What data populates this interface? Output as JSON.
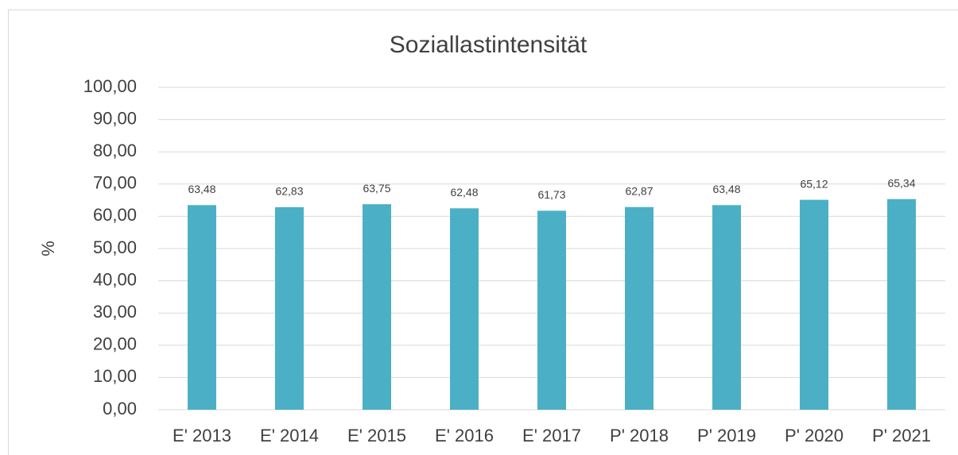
{
  "chart_data": {
    "type": "bar",
    "title": "Soziallastintensität",
    "y_label": "%",
    "categories": [
      "E' 2013",
      "E' 2014",
      "E' 2015",
      "E' 2016",
      "E' 2017",
      "P' 2018",
      "P' 2019",
      "P' 2020",
      "P' 2021"
    ],
    "values": [
      63.48,
      62.83,
      63.75,
      62.48,
      61.73,
      62.87,
      63.48,
      65.12,
      65.34
    ],
    "value_labels": [
      "63,48",
      "62,83",
      "63,75",
      "62,48",
      "61,73",
      "62,87",
      "63,48",
      "65,12",
      "65,34"
    ],
    "color": "#4bb0c5",
    "ylim": [
      0,
      100
    ],
    "yticks": [
      {
        "value": 0,
        "label": "0,00"
      },
      {
        "value": 10,
        "label": "10,00"
      },
      {
        "value": 20,
        "label": "20,00"
      },
      {
        "value": 30,
        "label": "30,00"
      },
      {
        "value": 40,
        "label": "40,00"
      },
      {
        "value": 50,
        "label": "50,00"
      },
      {
        "value": 60,
        "label": "60,00"
      },
      {
        "value": 70,
        "label": "70,00"
      },
      {
        "value": 80,
        "label": "80,00"
      },
      {
        "value": 90,
        "label": "90,00"
      },
      {
        "value": 100,
        "label": "100,00"
      }
    ],
    "grid": true
  }
}
